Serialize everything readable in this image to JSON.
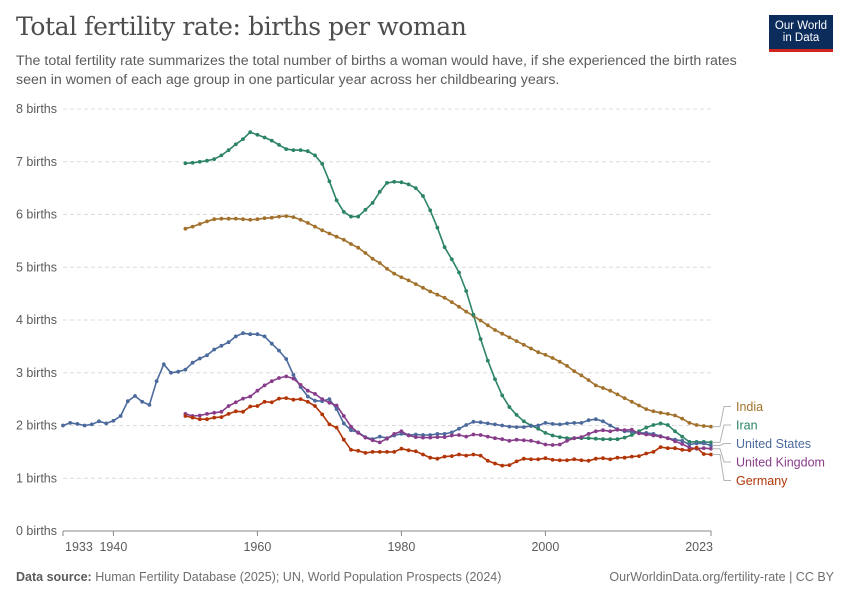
{
  "header": {
    "title": "Total fertility rate: births per woman",
    "subtitle": "The total fertility rate summarizes the total number of births a woman would have, if she experienced the birth rates seen in women of each age group in one particular year across her childbearing years.",
    "logo_line1": "Our World",
    "logo_line2": "in Data"
  },
  "footer": {
    "source_label": "Data source:",
    "source_text": "Human Fertility Database (2025); UN, World Population Prospects (2024)",
    "link_text": "OurWorldinData.org/fertility-rate | CC BY"
  },
  "chart_data": {
    "type": "line",
    "title": "Total fertility rate: births per woman",
    "xlabel": "",
    "ylabel": "",
    "xlim": [
      1933,
      2023
    ],
    "ylim": [
      0,
      8
    ],
    "grid": true,
    "legend": "right (labels at line ends)",
    "x_ticks": [
      "1933",
      "1940",
      "1960",
      "1980",
      "2000",
      "2023"
    ],
    "y_ticks": [
      "0 births",
      "1 births",
      "2 births",
      "3 births",
      "4 births",
      "5 births",
      "6 births",
      "7 births",
      "8 births"
    ],
    "series": [
      {
        "name": "India",
        "color": "#a2722d",
        "x": [
          1950,
          1951,
          1952,
          1953,
          1954,
          1955,
          1956,
          1957,
          1958,
          1959,
          1960,
          1961,
          1962,
          1963,
          1964,
          1965,
          1966,
          1967,
          1968,
          1969,
          1970,
          1971,
          1972,
          1973,
          1974,
          1975,
          1976,
          1977,
          1978,
          1979,
          1980,
          1981,
          1982,
          1983,
          1984,
          1985,
          1986,
          1987,
          1988,
          1989,
          1990,
          1991,
          1992,
          1993,
          1994,
          1995,
          1996,
          1997,
          1998,
          1999,
          2000,
          2001,
          2002,
          2003,
          2004,
          2005,
          2006,
          2007,
          2008,
          2009,
          2010,
          2011,
          2012,
          2013,
          2014,
          2015,
          2016,
          2017,
          2018,
          2019,
          2020,
          2021,
          2022,
          2023
        ],
        "values": [
          5.73,
          5.77,
          5.82,
          5.87,
          5.91,
          5.92,
          5.92,
          5.92,
          5.91,
          5.9,
          5.91,
          5.93,
          5.94,
          5.96,
          5.97,
          5.95,
          5.9,
          5.84,
          5.77,
          5.7,
          5.64,
          5.58,
          5.52,
          5.44,
          5.37,
          5.27,
          5.16,
          5.08,
          4.97,
          4.88,
          4.81,
          4.75,
          4.68,
          4.61,
          4.54,
          4.48,
          4.42,
          4.34,
          4.25,
          4.16,
          4.08,
          3.99,
          3.9,
          3.81,
          3.74,
          3.67,
          3.6,
          3.53,
          3.46,
          3.39,
          3.34,
          3.28,
          3.21,
          3.13,
          3.03,
          2.95,
          2.86,
          2.76,
          2.71,
          2.66,
          2.59,
          2.52,
          2.45,
          2.38,
          2.31,
          2.27,
          2.24,
          2.22,
          2.19,
          2.13,
          2.05,
          2.01,
          1.99,
          1.98
        ]
      },
      {
        "name": "Iran",
        "color": "#2c8465",
        "x": [
          1950,
          1951,
          1952,
          1953,
          1954,
          1955,
          1956,
          1957,
          1958,
          1959,
          1960,
          1961,
          1962,
          1963,
          1964,
          1965,
          1966,
          1967,
          1968,
          1969,
          1970,
          1971,
          1972,
          1973,
          1974,
          1975,
          1976,
          1977,
          1978,
          1979,
          1980,
          1981,
          1982,
          1983,
          1984,
          1985,
          1986,
          1987,
          1988,
          1989,
          1990,
          1991,
          1992,
          1993,
          1994,
          1995,
          1996,
          1997,
          1998,
          1999,
          2000,
          2001,
          2002,
          2003,
          2004,
          2005,
          2006,
          2007,
          2008,
          2009,
          2010,
          2011,
          2012,
          2013,
          2014,
          2015,
          2016,
          2017,
          2018,
          2019,
          2020,
          2021,
          2022,
          2023
        ],
        "values": [
          6.97,
          6.98,
          7.0,
          7.02,
          7.05,
          7.12,
          7.22,
          7.33,
          7.43,
          7.56,
          7.51,
          7.46,
          7.4,
          7.32,
          7.24,
          7.22,
          7.22,
          7.2,
          7.12,
          6.96,
          6.63,
          6.27,
          6.05,
          5.96,
          5.96,
          6.09,
          6.22,
          6.43,
          6.6,
          6.62,
          6.61,
          6.57,
          6.5,
          6.35,
          6.08,
          5.75,
          5.38,
          5.15,
          4.9,
          4.55,
          4.1,
          3.64,
          3.23,
          2.88,
          2.57,
          2.35,
          2.2,
          2.08,
          2.0,
          1.94,
          1.86,
          1.81,
          1.78,
          1.76,
          1.76,
          1.76,
          1.76,
          1.75,
          1.74,
          1.74,
          1.74,
          1.77,
          1.82,
          1.89,
          1.96,
          2.01,
          2.04,
          2.01,
          1.89,
          1.79,
          1.69,
          1.69,
          1.69,
          1.68
        ]
      },
      {
        "name": "United States",
        "color": "#4c6a9c",
        "x": [
          1933,
          1934,
          1935,
          1936,
          1937,
          1938,
          1939,
          1940,
          1941,
          1942,
          1943,
          1944,
          1945,
          1946,
          1947,
          1948,
          1949,
          1950,
          1951,
          1952,
          1953,
          1954,
          1955,
          1956,
          1957,
          1958,
          1959,
          1960,
          1961,
          1962,
          1963,
          1964,
          1965,
          1966,
          1967,
          1968,
          1969,
          1970,
          1971,
          1972,
          1973,
          1974,
          1975,
          1976,
          1977,
          1978,
          1979,
          1980,
          1981,
          1982,
          1983,
          1984,
          1985,
          1986,
          1987,
          1988,
          1989,
          1990,
          1991,
          1992,
          1993,
          1994,
          1995,
          1996,
          1997,
          1998,
          1999,
          2000,
          2001,
          2002,
          2003,
          2004,
          2005,
          2006,
          2007,
          2008,
          2009,
          2010,
          2011,
          2012,
          2013,
          2014,
          2015,
          2016,
          2017,
          2018,
          2019,
          2020,
          2021,
          2022,
          2023
        ],
        "values": [
          2.0,
          2.05,
          2.03,
          2.0,
          2.02,
          2.08,
          2.04,
          2.09,
          2.18,
          2.46,
          2.56,
          2.45,
          2.39,
          2.84,
          3.16,
          3.0,
          3.02,
          3.06,
          3.19,
          3.27,
          3.33,
          3.44,
          3.51,
          3.58,
          3.69,
          3.75,
          3.73,
          3.73,
          3.69,
          3.55,
          3.42,
          3.26,
          2.96,
          2.73,
          2.55,
          2.47,
          2.46,
          2.5,
          2.31,
          2.04,
          1.91,
          1.87,
          1.78,
          1.74,
          1.79,
          1.76,
          1.81,
          1.84,
          1.82,
          1.83,
          1.82,
          1.82,
          1.84,
          1.84,
          1.87,
          1.94,
          2.01,
          2.07,
          2.06,
          2.04,
          2.02,
          2.0,
          1.98,
          1.97,
          1.97,
          1.99,
          2.0,
          2.05,
          2.03,
          2.02,
          2.04,
          2.05,
          2.05,
          2.1,
          2.12,
          2.08,
          2.0,
          1.93,
          1.89,
          1.88,
          1.86,
          1.86,
          1.84,
          1.8,
          1.76,
          1.73,
          1.71,
          1.64,
          1.66,
          1.66,
          1.62
        ]
      },
      {
        "name": "United Kingdom",
        "color": "#883d8b",
        "x": [
          1950,
          1951,
          1952,
          1953,
          1954,
          1955,
          1956,
          1957,
          1958,
          1959,
          1960,
          1961,
          1962,
          1963,
          1964,
          1965,
          1966,
          1967,
          1968,
          1969,
          1970,
          1971,
          1972,
          1973,
          1974,
          1975,
          1976,
          1977,
          1978,
          1979,
          1980,
          1981,
          1982,
          1983,
          1984,
          1985,
          1986,
          1987,
          1988,
          1989,
          1990,
          1991,
          1992,
          1993,
          1994,
          1995,
          1996,
          1997,
          1998,
          1999,
          2000,
          2001,
          2002,
          2003,
          2004,
          2005,
          2006,
          2007,
          2008,
          2009,
          2010,
          2011,
          2012,
          2013,
          2014,
          2015,
          2016,
          2017,
          2018,
          2019,
          2020,
          2021,
          2022,
          2023
        ],
        "values": [
          2.22,
          2.18,
          2.19,
          2.22,
          2.24,
          2.26,
          2.37,
          2.44,
          2.51,
          2.55,
          2.66,
          2.76,
          2.84,
          2.9,
          2.93,
          2.89,
          2.77,
          2.66,
          2.6,
          2.5,
          2.43,
          2.38,
          2.18,
          1.98,
          1.86,
          1.77,
          1.72,
          1.68,
          1.75,
          1.84,
          1.89,
          1.81,
          1.78,
          1.77,
          1.77,
          1.78,
          1.78,
          1.81,
          1.82,
          1.79,
          1.83,
          1.82,
          1.79,
          1.76,
          1.74,
          1.71,
          1.73,
          1.72,
          1.71,
          1.68,
          1.64,
          1.63,
          1.64,
          1.71,
          1.76,
          1.78,
          1.84,
          1.89,
          1.91,
          1.89,
          1.92,
          1.91,
          1.92,
          1.85,
          1.83,
          1.81,
          1.79,
          1.76,
          1.7,
          1.65,
          1.58,
          1.56,
          1.57,
          1.56
        ]
      },
      {
        "name": "Germany",
        "color": "#b13507",
        "x": [
          1950,
          1951,
          1952,
          1953,
          1954,
          1955,
          1956,
          1957,
          1958,
          1959,
          1960,
          1961,
          1962,
          1963,
          1964,
          1965,
          1966,
          1967,
          1968,
          1969,
          1970,
          1971,
          1972,
          1973,
          1974,
          1975,
          1976,
          1977,
          1978,
          1979,
          1980,
          1981,
          1982,
          1983,
          1984,
          1985,
          1986,
          1987,
          1988,
          1989,
          1990,
          1991,
          1992,
          1993,
          1994,
          1995,
          1996,
          1997,
          1998,
          1999,
          2000,
          2001,
          2002,
          2003,
          2004,
          2005,
          2006,
          2007,
          2008,
          2009,
          2010,
          2011,
          2012,
          2013,
          2014,
          2015,
          2016,
          2017,
          2018,
          2019,
          2020,
          2021,
          2022,
          2023
        ],
        "values": [
          2.18,
          2.15,
          2.12,
          2.12,
          2.15,
          2.16,
          2.22,
          2.27,
          2.26,
          2.36,
          2.37,
          2.45,
          2.44,
          2.51,
          2.52,
          2.49,
          2.5,
          2.45,
          2.37,
          2.21,
          2.02,
          1.96,
          1.73,
          1.54,
          1.52,
          1.48,
          1.5,
          1.5,
          1.5,
          1.5,
          1.56,
          1.53,
          1.51,
          1.45,
          1.39,
          1.37,
          1.41,
          1.42,
          1.45,
          1.43,
          1.45,
          1.43,
          1.33,
          1.28,
          1.24,
          1.25,
          1.32,
          1.37,
          1.36,
          1.36,
          1.38,
          1.35,
          1.34,
          1.34,
          1.36,
          1.34,
          1.33,
          1.37,
          1.38,
          1.36,
          1.39,
          1.39,
          1.41,
          1.42,
          1.47,
          1.5,
          1.59,
          1.57,
          1.57,
          1.54,
          1.53,
          1.58,
          1.46,
          1.45
        ]
      }
    ]
  }
}
